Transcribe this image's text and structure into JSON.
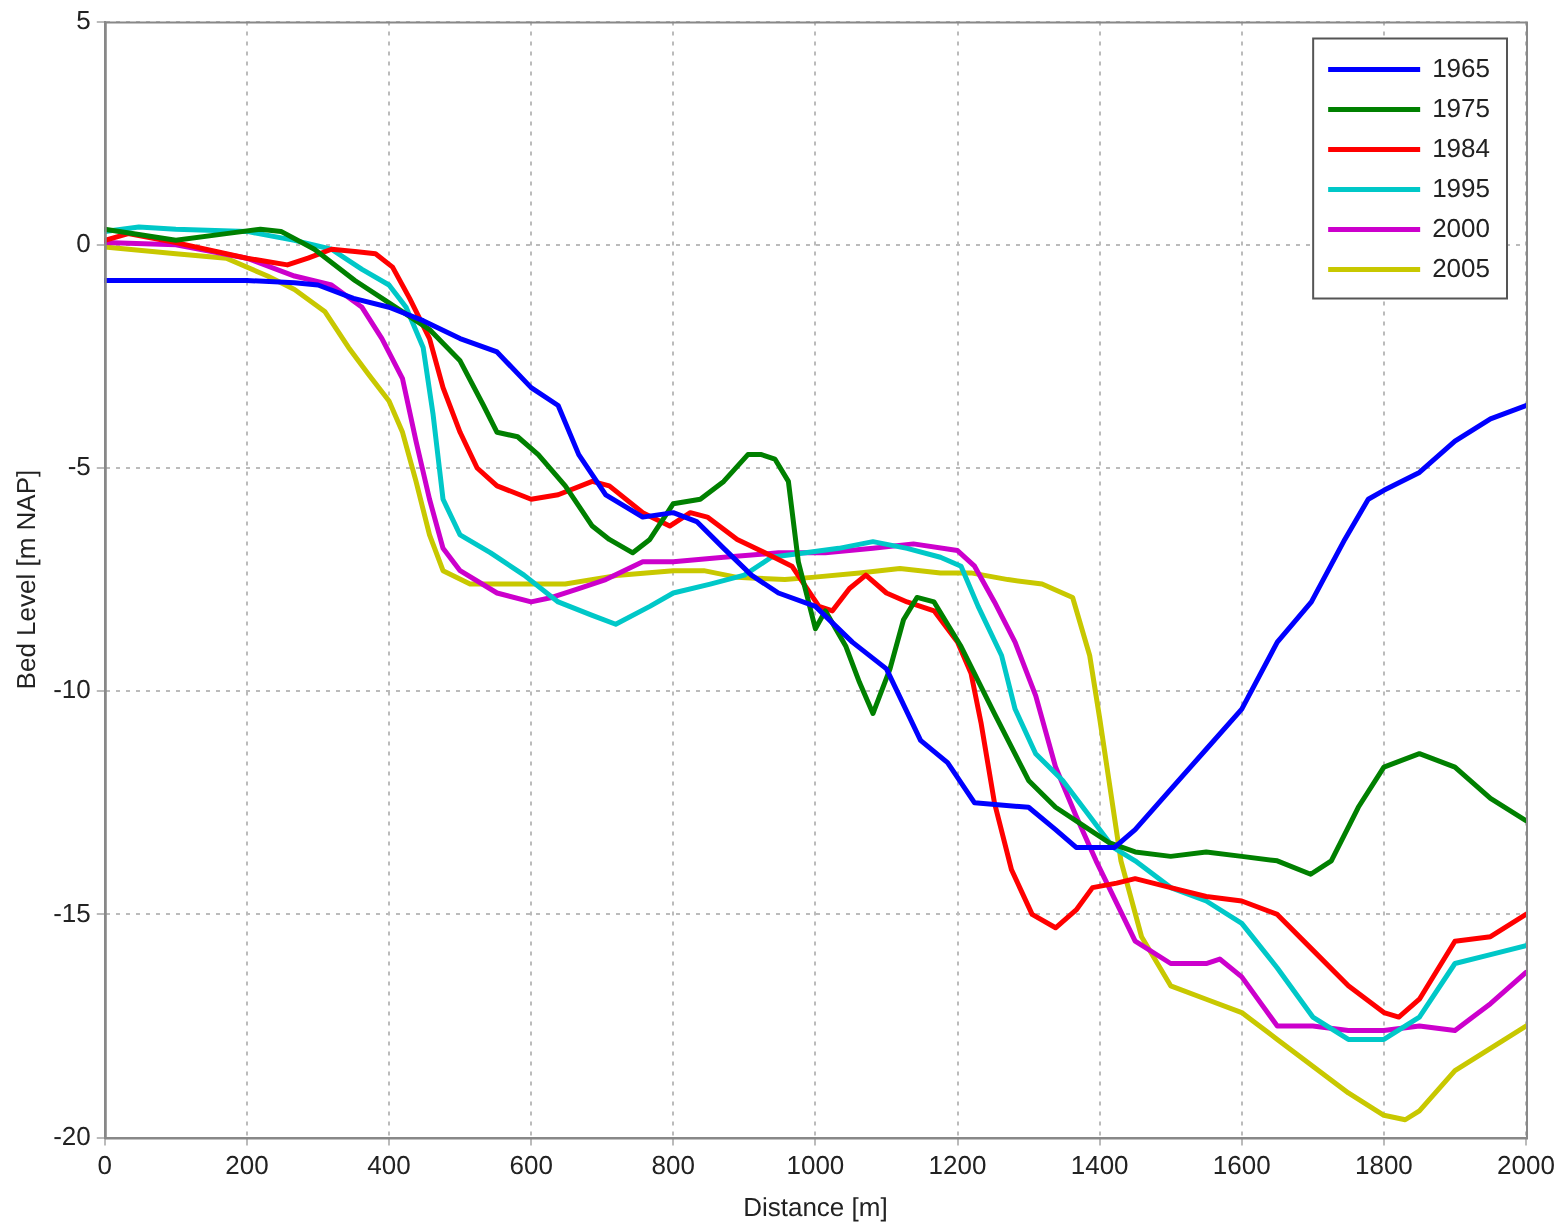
{
  "chart_data": {
    "type": "line",
    "xlabel": "Distance [m]",
    "ylabel": "Bed Level [m NAP]",
    "xlim": [
      0,
      2000
    ],
    "xticks": [
      0,
      200,
      400,
      600,
      800,
      1000,
      1200,
      1400,
      1600,
      1800,
      2000
    ],
    "ylim": [
      -20,
      5
    ],
    "yticks": [
      -20,
      -15,
      -10,
      -5,
      0,
      5
    ],
    "grid": true,
    "legend": "top right",
    "marker": "none",
    "line_style": "solid",
    "series": [
      {
        "name": "1965",
        "color": "#0000ff",
        "x": [
          0,
          100,
          200,
          267,
          300,
          350,
          400,
          448,
          500,
          552,
          600,
          638,
          667,
          705,
          757,
          800,
          833,
          871,
          910,
          948,
          1000,
          1052,
          1100,
          1148,
          1186,
          1224,
          1300,
          1338,
          1367,
          1421,
          1450,
          1500,
          1550,
          1600,
          1650,
          1698,
          1745,
          1778,
          1800,
          1850,
          1900,
          1950,
          2000
        ],
        "values": [
          -0.8,
          -0.8,
          -0.8,
          -0.85,
          -0.9,
          -1.2,
          -1.4,
          -1.7,
          -2.1,
          -2.4,
          -3.2,
          -3.6,
          -4.7,
          -5.6,
          -6.1,
          -6.0,
          -6.2,
          -6.8,
          -7.4,
          -7.8,
          -8.1,
          -8.9,
          -9.5,
          -11.1,
          -11.6,
          -12.5,
          -12.6,
          -13.1,
          -13.5,
          -13.5,
          -13.1,
          -12.2,
          -11.3,
          -10.4,
          -8.9,
          -8.0,
          -6.6,
          -5.7,
          -5.5,
          -5.1,
          -4.4,
          -3.9,
          -3.6
        ]
      },
      {
        "name": "1975",
        "color": "#008000",
        "x": [
          0,
          100,
          171,
          219,
          248,
          295,
          352,
          400,
          457,
          500,
          533,
          552,
          581,
          610,
          648,
          686,
          710,
          743,
          767,
          800,
          838,
          871,
          905,
          924,
          943,
          962,
          976,
          1000,
          1014,
          1043,
          1062,
          1081,
          1105,
          1124,
          1143,
          1167,
          1205,
          1252,
          1300,
          1338,
          1376,
          1414,
          1450,
          1500,
          1550,
          1600,
          1650,
          1697,
          1726,
          1764,
          1800,
          1850,
          1900,
          1950,
          2000
        ],
        "values": [
          0.35,
          0.1,
          0.25,
          0.35,
          0.3,
          -0.1,
          -0.8,
          -1.3,
          -1.9,
          -2.6,
          -3.6,
          -4.2,
          -4.3,
          -4.7,
          -5.4,
          -6.3,
          -6.6,
          -6.9,
          -6.6,
          -5.8,
          -5.7,
          -5.3,
          -4.7,
          -4.7,
          -4.8,
          -5.3,
          -7.1,
          -8.6,
          -8.2,
          -9.0,
          -9.8,
          -10.5,
          -9.5,
          -8.4,
          -7.9,
          -8.0,
          -9.0,
          -10.5,
          -12.0,
          -12.6,
          -13.0,
          -13.4,
          -13.6,
          -13.7,
          -13.6,
          -13.7,
          -13.8,
          -14.1,
          -13.8,
          -12.6,
          -11.7,
          -11.4,
          -11.7,
          -12.4,
          -12.9
        ]
      },
      {
        "name": "1984",
        "color": "#ff0000",
        "x": [
          0,
          33,
          100,
          200,
          257,
          286,
          319,
          352,
          381,
          405,
          429,
          457,
          476,
          500,
          524,
          552,
          600,
          638,
          686,
          710,
          757,
          795,
          824,
          848,
          890,
          929,
          967,
          1005,
          1024,
          1048,
          1071,
          1100,
          1129,
          1167,
          1200,
          1219,
          1233,
          1252,
          1276,
          1305,
          1338,
          1367,
          1390,
          1424,
          1450,
          1500,
          1550,
          1600,
          1650,
          1700,
          1750,
          1800,
          1821,
          1850,
          1900,
          1950,
          2000
        ],
        "values": [
          0.1,
          0.25,
          0.05,
          -0.3,
          -0.45,
          -0.3,
          -0.1,
          -0.15,
          -0.2,
          -0.5,
          -1.2,
          -2.1,
          -3.2,
          -4.2,
          -5.0,
          -5.4,
          -5.7,
          -5.6,
          -5.3,
          -5.4,
          -6.0,
          -6.3,
          -6.0,
          -6.1,
          -6.6,
          -6.9,
          -7.2,
          -8.1,
          -8.2,
          -7.7,
          -7.4,
          -7.8,
          -8.0,
          -8.2,
          -8.9,
          -9.6,
          -10.7,
          -12.5,
          -14.0,
          -15.0,
          -15.3,
          -14.9,
          -14.4,
          -14.3,
          -14.2,
          -14.4,
          -14.6,
          -14.7,
          -15.0,
          -15.8,
          -16.6,
          -17.2,
          -17.3,
          -16.9,
          -15.6,
          -15.5,
          -15.0
        ]
      },
      {
        "name": "1995",
        "color": "#00c8c8",
        "x": [
          0,
          48,
          100,
          200,
          267,
          319,
          362,
          400,
          424,
          448,
          462,
          476,
          500,
          543,
          590,
          638,
          686,
          719,
          767,
          800,
          852,
          900,
          938,
          986,
          1033,
          1081,
          1129,
          1176,
          1205,
          1229,
          1262,
          1281,
          1310,
          1348,
          1386,
          1419,
          1450,
          1500,
          1550,
          1600,
          1650,
          1700,
          1750,
          1800,
          1850,
          1900,
          1950,
          2000
        ],
        "values": [
          0.3,
          0.4,
          0.35,
          0.3,
          0.1,
          -0.1,
          -0.55,
          -0.9,
          -1.4,
          -2.3,
          -3.8,
          -5.7,
          -6.5,
          -6.9,
          -7.4,
          -8.0,
          -8.3,
          -8.5,
          -8.1,
          -7.8,
          -7.6,
          -7.4,
          -7.0,
          -6.9,
          -6.8,
          -6.65,
          -6.8,
          -7.0,
          -7.2,
          -8.1,
          -9.2,
          -10.4,
          -11.4,
          -12.0,
          -12.8,
          -13.5,
          -13.8,
          -14.4,
          -14.7,
          -15.2,
          -16.2,
          -17.3,
          -17.8,
          -17.8,
          -17.3,
          -16.1,
          -15.9,
          -15.7
        ]
      },
      {
        "name": "2000",
        "color": "#cc00cc",
        "x": [
          0,
          100,
          200,
          267,
          319,
          362,
          390,
          419,
          438,
          457,
          476,
          500,
          552,
          600,
          629,
          667,
          705,
          757,
          800,
          871,
          948,
          1014,
          1081,
          1138,
          1200,
          1224,
          1252,
          1281,
          1310,
          1338,
          1367,
          1395,
          1450,
          1500,
          1550,
          1569,
          1600,
          1650,
          1700,
          1750,
          1800,
          1850,
          1900,
          1950,
          2000
        ],
        "values": [
          0.05,
          0,
          -0.3,
          -0.7,
          -0.9,
          -1.4,
          -2.1,
          -3.0,
          -4.4,
          -5.7,
          -6.8,
          -7.3,
          -7.8,
          -8.0,
          -7.9,
          -7.7,
          -7.5,
          -7.1,
          -7.1,
          -7.0,
          -6.9,
          -6.9,
          -6.8,
          -6.7,
          -6.85,
          -7.2,
          -8.0,
          -8.9,
          -10.1,
          -11.7,
          -12.8,
          -13.8,
          -15.6,
          -16.1,
          -16.1,
          -16.0,
          -16.4,
          -17.5,
          -17.5,
          -17.6,
          -17.6,
          -17.5,
          -17.6,
          -17.0,
          -16.3
        ]
      },
      {
        "name": "2005",
        "color": "#c8c800",
        "x": [
          0,
          100,
          171,
          229,
          267,
          310,
          343,
          371,
          400,
          419,
          438,
          457,
          476,
          514,
          571,
          648,
          724,
          800,
          843,
          890,
          957,
          995,
          1062,
          1119,
          1176,
          1219,
          1271,
          1319,
          1362,
          1386,
          1400,
          1430,
          1459,
          1500,
          1550,
          1600,
          1650,
          1700,
          1750,
          1800,
          1830,
          1850,
          1900,
          1950,
          2000
        ],
        "values": [
          -0.05,
          -0.2,
          -0.3,
          -0.7,
          -1.0,
          -1.5,
          -2.3,
          -2.9,
          -3.5,
          -4.2,
          -5.3,
          -6.5,
          -7.3,
          -7.6,
          -7.6,
          -7.6,
          -7.4,
          -7.3,
          -7.3,
          -7.45,
          -7.5,
          -7.45,
          -7.35,
          -7.25,
          -7.35,
          -7.35,
          -7.5,
          -7.6,
          -7.9,
          -9.2,
          -10.6,
          -13.8,
          -15.5,
          -16.6,
          -16.9,
          -17.2,
          -17.8,
          -18.4,
          -19.0,
          -19.5,
          -19.6,
          -19.4,
          -18.5,
          -18.0,
          -17.5
        ]
      }
    ]
  }
}
